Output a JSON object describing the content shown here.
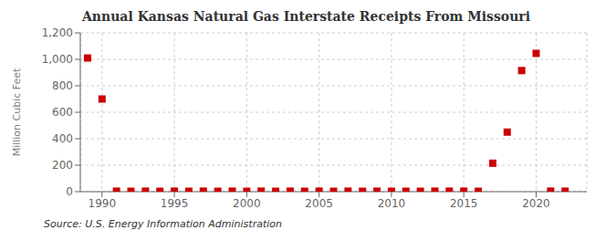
{
  "chart_data": {
    "type": "scatter",
    "title": "Annual Kansas Natural Gas Interstate Receipts From Missouri",
    "ylabel": "Million Cubic Feet",
    "source": "Source: U.S. Energy Information Administration",
    "x": [
      1989,
      1990,
      1991,
      1992,
      1993,
      1994,
      1995,
      1996,
      1997,
      1998,
      1999,
      2000,
      2001,
      2002,
      2003,
      2004,
      2005,
      2006,
      2007,
      2008,
      2009,
      2010,
      2011,
      2012,
      2013,
      2014,
      2015,
      2016,
      2017,
      2018,
      2019,
      2020,
      2021,
      2022
    ],
    "values": [
      1010,
      700,
      4,
      3,
      4,
      3,
      4,
      3,
      4,
      3,
      4,
      3,
      4,
      3,
      4,
      3,
      4,
      3,
      4,
      3,
      4,
      3,
      3,
      3,
      4,
      4,
      4,
      3,
      215,
      450,
      915,
      1045,
      4,
      4
    ],
    "color": "#cc0000",
    "marker": "square",
    "xlim": [
      1988.5,
      2023.5
    ],
    "xticks": [
      1990,
      1995,
      2000,
      2005,
      2010,
      2015,
      2020
    ],
    "ylim": [
      0,
      1200
    ],
    "yticks": [
      0,
      200,
      400,
      600,
      800,
      {
        "value": 1000,
        "label": "1,000"
      },
      {
        "value": 1200,
        "label": "1,200"
      }
    ],
    "grid": true
  }
}
